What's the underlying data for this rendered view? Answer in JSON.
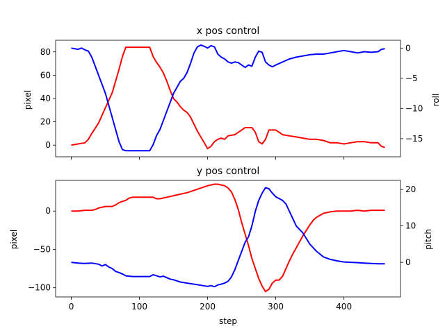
{
  "chart_data": [
    {
      "type": "line",
      "title": "x pos control",
      "xlabel": "",
      "xlim": [
        -23,
        483
      ],
      "ylabel": "pixel",
      "ylim": [
        -10,
        90
      ],
      "yticks": [
        0,
        20,
        40,
        60,
        80
      ],
      "y2label": "roll",
      "y2lim": [
        -18,
        1.3
      ],
      "y2ticks": [
        0,
        -5,
        -10,
        -15
      ],
      "xticks": [
        0,
        100,
        200,
        300,
        400
      ],
      "xtick_labels_visible": false,
      "series": [
        {
          "color": "#ff0000",
          "axis": "left",
          "x": [
            0,
            10,
            20,
            25,
            30,
            40,
            50,
            60,
            65,
            70,
            75,
            80,
            85,
            90,
            100,
            110,
            115,
            120,
            125,
            130,
            135,
            140,
            145,
            150,
            155,
            160,
            165,
            170,
            175,
            180,
            185,
            190,
            195,
            200,
            205,
            210,
            215,
            220,
            225,
            230,
            240,
            250,
            255,
            260,
            265,
            270,
            275,
            280,
            285,
            290,
            300,
            310,
            320,
            330,
            340,
            350,
            360,
            370,
            380,
            390,
            400,
            410,
            420,
            430,
            440,
            450,
            455,
            460
          ],
          "y": [
            0,
            1,
            2,
            5,
            10,
            19,
            32,
            45,
            55,
            65,
            76,
            84,
            84,
            84,
            84,
            84,
            84,
            76,
            71,
            67,
            62,
            55,
            47,
            40,
            37,
            33,
            30,
            28,
            24,
            18,
            12,
            7,
            2,
            -3,
            -1,
            3,
            5,
            6,
            5,
            8,
            9,
            13,
            15,
            15,
            15,
            11,
            3,
            1,
            5,
            13,
            13,
            9,
            8,
            7,
            6,
            5,
            5,
            4,
            2,
            2,
            1,
            2,
            3,
            3,
            2,
            2,
            -1,
            -2
          ]
        },
        {
          "color": "#0000ff",
          "axis": "right",
          "x": [
            0,
            10,
            15,
            20,
            25,
            30,
            35,
            40,
            45,
            50,
            55,
            60,
            65,
            70,
            75,
            80,
            85,
            90,
            100,
            110,
            115,
            120,
            125,
            130,
            135,
            140,
            145,
            150,
            155,
            160,
            165,
            170,
            175,
            180,
            185,
            190,
            195,
            200,
            205,
            210,
            215,
            220,
            225,
            230,
            235,
            240,
            245,
            250,
            255,
            260,
            265,
            270,
            275,
            280,
            285,
            290,
            295,
            300,
            310,
            320,
            330,
            340,
            350,
            360,
            370,
            380,
            390,
            400,
            410,
            420,
            430,
            440,
            450,
            455,
            460
          ],
          "y": [
            0,
            -0.2,
            0,
            -0.3,
            -0.5,
            -1.5,
            -3,
            -4.5,
            -6,
            -7.5,
            -9.5,
            -11.5,
            -13.5,
            -15.5,
            -16.8,
            -17,
            -17,
            -17,
            -17,
            -17,
            -17,
            -16,
            -14.5,
            -13.5,
            -12,
            -10.5,
            -9,
            -7.5,
            -6.5,
            -5.5,
            -5,
            -4,
            -2.5,
            -0.8,
            0.2,
            0.5,
            0.3,
            0,
            0.4,
            0.2,
            -1,
            -1.5,
            -1.8,
            -2.3,
            -2.5,
            -2.3,
            -2.4,
            -2.8,
            -3.2,
            -2.8,
            -3,
            -1.5,
            -0.5,
            -0.7,
            -2.3,
            -2.8,
            -3.1,
            -2.8,
            -2.3,
            -1.8,
            -1.5,
            -1.3,
            -1.1,
            -1,
            -1,
            -0.8,
            -0.6,
            -0.4,
            -0.6,
            -0.8,
            -0.6,
            -0.7,
            -0.6,
            -0.2,
            -0.1
          ]
        }
      ]
    },
    {
      "type": "line",
      "title": "y pos control",
      "xlabel": "step",
      "xlim": [
        -23,
        483
      ],
      "ylabel": "pixel",
      "ylim": [
        -112,
        40
      ],
      "yticks": [
        0,
        -50,
        -100
      ],
      "y2label": "pitch",
      "y2lim": [
        -9.5,
        22.5
      ],
      "y2ticks": [
        0,
        10,
        20
      ],
      "xticks": [
        0,
        100,
        200,
        300,
        400
      ],
      "xtick_labels": [
        "0",
        "100",
        "200",
        "300",
        "400"
      ],
      "series": [
        {
          "color": "#ff0000",
          "axis": "left",
          "x": [
            0,
            10,
            20,
            30,
            35,
            40,
            50,
            60,
            65,
            70,
            80,
            85,
            90,
            100,
            110,
            120,
            125,
            130,
            140,
            150,
            160,
            170,
            180,
            190,
            200,
            210,
            215,
            220,
            225,
            230,
            235,
            240,
            245,
            250,
            255,
            260,
            265,
            270,
            275,
            280,
            285,
            290,
            295,
            300,
            305,
            310,
            315,
            320,
            325,
            330,
            335,
            340,
            345,
            350,
            355,
            360,
            370,
            380,
            390,
            400,
            410,
            420,
            430,
            440,
            450,
            460
          ],
          "y": [
            0,
            0,
            1,
            1,
            2,
            4,
            6,
            6,
            8,
            11,
            14,
            17,
            18,
            18,
            18,
            18,
            16,
            16,
            18,
            20,
            22,
            24,
            27,
            30,
            33,
            35,
            35,
            34,
            33,
            30,
            25,
            15,
            2,
            -15,
            -30,
            -45,
            -62,
            -75,
            -88,
            -98,
            -105,
            -102,
            -94,
            -90,
            -90,
            -85,
            -75,
            -65,
            -56,
            -48,
            -40,
            -32,
            -25,
            -18,
            -12,
            -8,
            -3,
            -1,
            0,
            0,
            0,
            1,
            0,
            1,
            1,
            1
          ]
        },
        {
          "color": "#0000ff",
          "axis": "right",
          "x": [
            0,
            10,
            20,
            30,
            40,
            45,
            50,
            55,
            60,
            65,
            70,
            75,
            80,
            90,
            100,
            110,
            115,
            120,
            125,
            130,
            135,
            140,
            145,
            150,
            160,
            170,
            180,
            190,
            200,
            205,
            210,
            215,
            220,
            225,
            230,
            235,
            240,
            245,
            250,
            255,
            260,
            265,
            270,
            275,
            280,
            285,
            290,
            295,
            300,
            305,
            310,
            315,
            320,
            325,
            330,
            340,
            350,
            360,
            370,
            380,
            390,
            400,
            410,
            420,
            430,
            440,
            450,
            460
          ],
          "y": [
            0,
            -0.2,
            -0.3,
            -0.2,
            -0.5,
            -1,
            -0.6,
            -1.3,
            -1.7,
            -2.5,
            -2.8,
            -3.2,
            -3.7,
            -3.9,
            -3.9,
            -3.9,
            -3.9,
            -3.4,
            -3.7,
            -4,
            -3.8,
            -4.2,
            -4.6,
            -4.8,
            -5.4,
            -5.7,
            -6,
            -6.3,
            -6.6,
            -6.4,
            -6.7,
            -6.2,
            -6,
            -5.7,
            -5.2,
            -4,
            -2,
            0.5,
            3,
            5.5,
            7,
            10,
            14,
            17,
            19,
            20.5,
            20.2,
            19,
            18,
            17.5,
            17,
            16,
            14,
            12,
            10,
            8,
            5,
            3,
            1.5,
            0.8,
            0.4,
            0.1,
            0,
            -0.1,
            -0.2,
            -0.3,
            -0.4,
            -0.4
          ]
        }
      ]
    }
  ]
}
